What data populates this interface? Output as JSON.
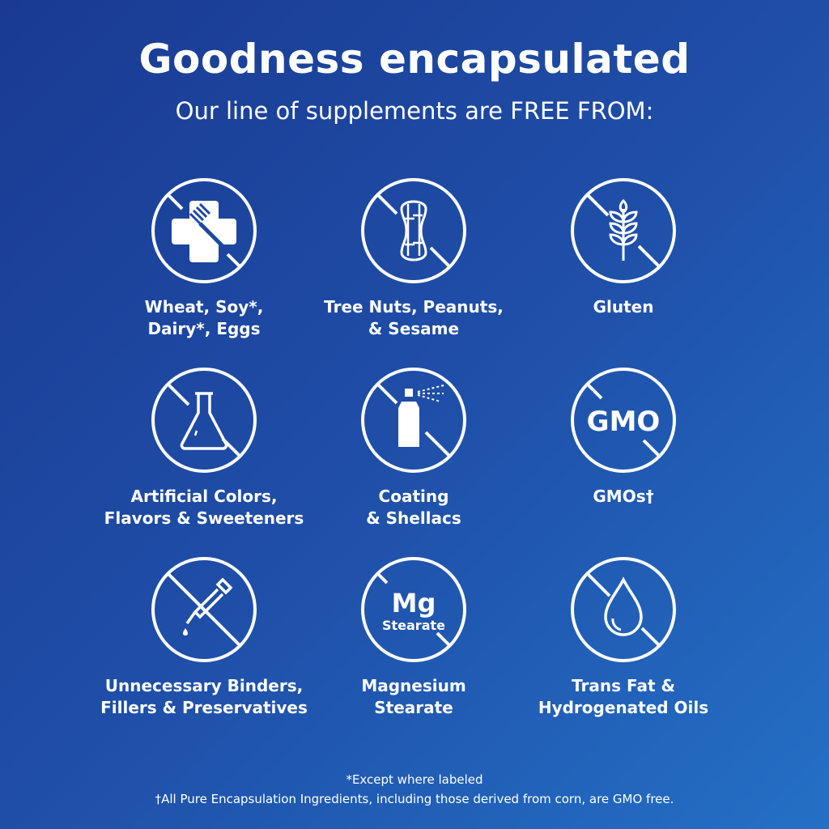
{
  "header": {
    "title": "Goodness encapsulated",
    "subtitle": "Our line of supplements are FREE FROM:"
  },
  "items": [
    {
      "icon": "no-allergens-icon",
      "label": "Wheat, Soy*,\nDairy*, Eggs"
    },
    {
      "icon": "no-peanut-icon",
      "label": "Tree Nuts, Peanuts,\n& Sesame"
    },
    {
      "icon": "no-wheat-icon",
      "label": "Gluten"
    },
    {
      "icon": "no-flask-icon",
      "label": "Artificial Colors,\nFlavors & Sweeteners"
    },
    {
      "icon": "no-spray-icon",
      "label": "Coating\n& Shellacs"
    },
    {
      "icon": "no-gmo-icon",
      "label": "GMOs†",
      "icon_text": "GMO"
    },
    {
      "icon": "no-dropper-icon",
      "label": "Unnecessary Binders,\nFillers & Preservatives"
    },
    {
      "icon": "no-mg-stearate-icon",
      "label": "Magnesium\nStearate",
      "icon_text": "Mg",
      "icon_subtext": "Stearate"
    },
    {
      "icon": "no-oil-drop-icon",
      "label": "Trans Fat &\nHydrogenated Oils"
    }
  ],
  "footnotes": {
    "asterisk": "*Except where labeled",
    "dagger": "†All Pure Encapsulation Ingredients, including those derived from corn, are GMO free."
  },
  "colors": {
    "background_start": "#1a3a92",
    "background_end": "#2470c6",
    "foreground": "#ffffff"
  }
}
